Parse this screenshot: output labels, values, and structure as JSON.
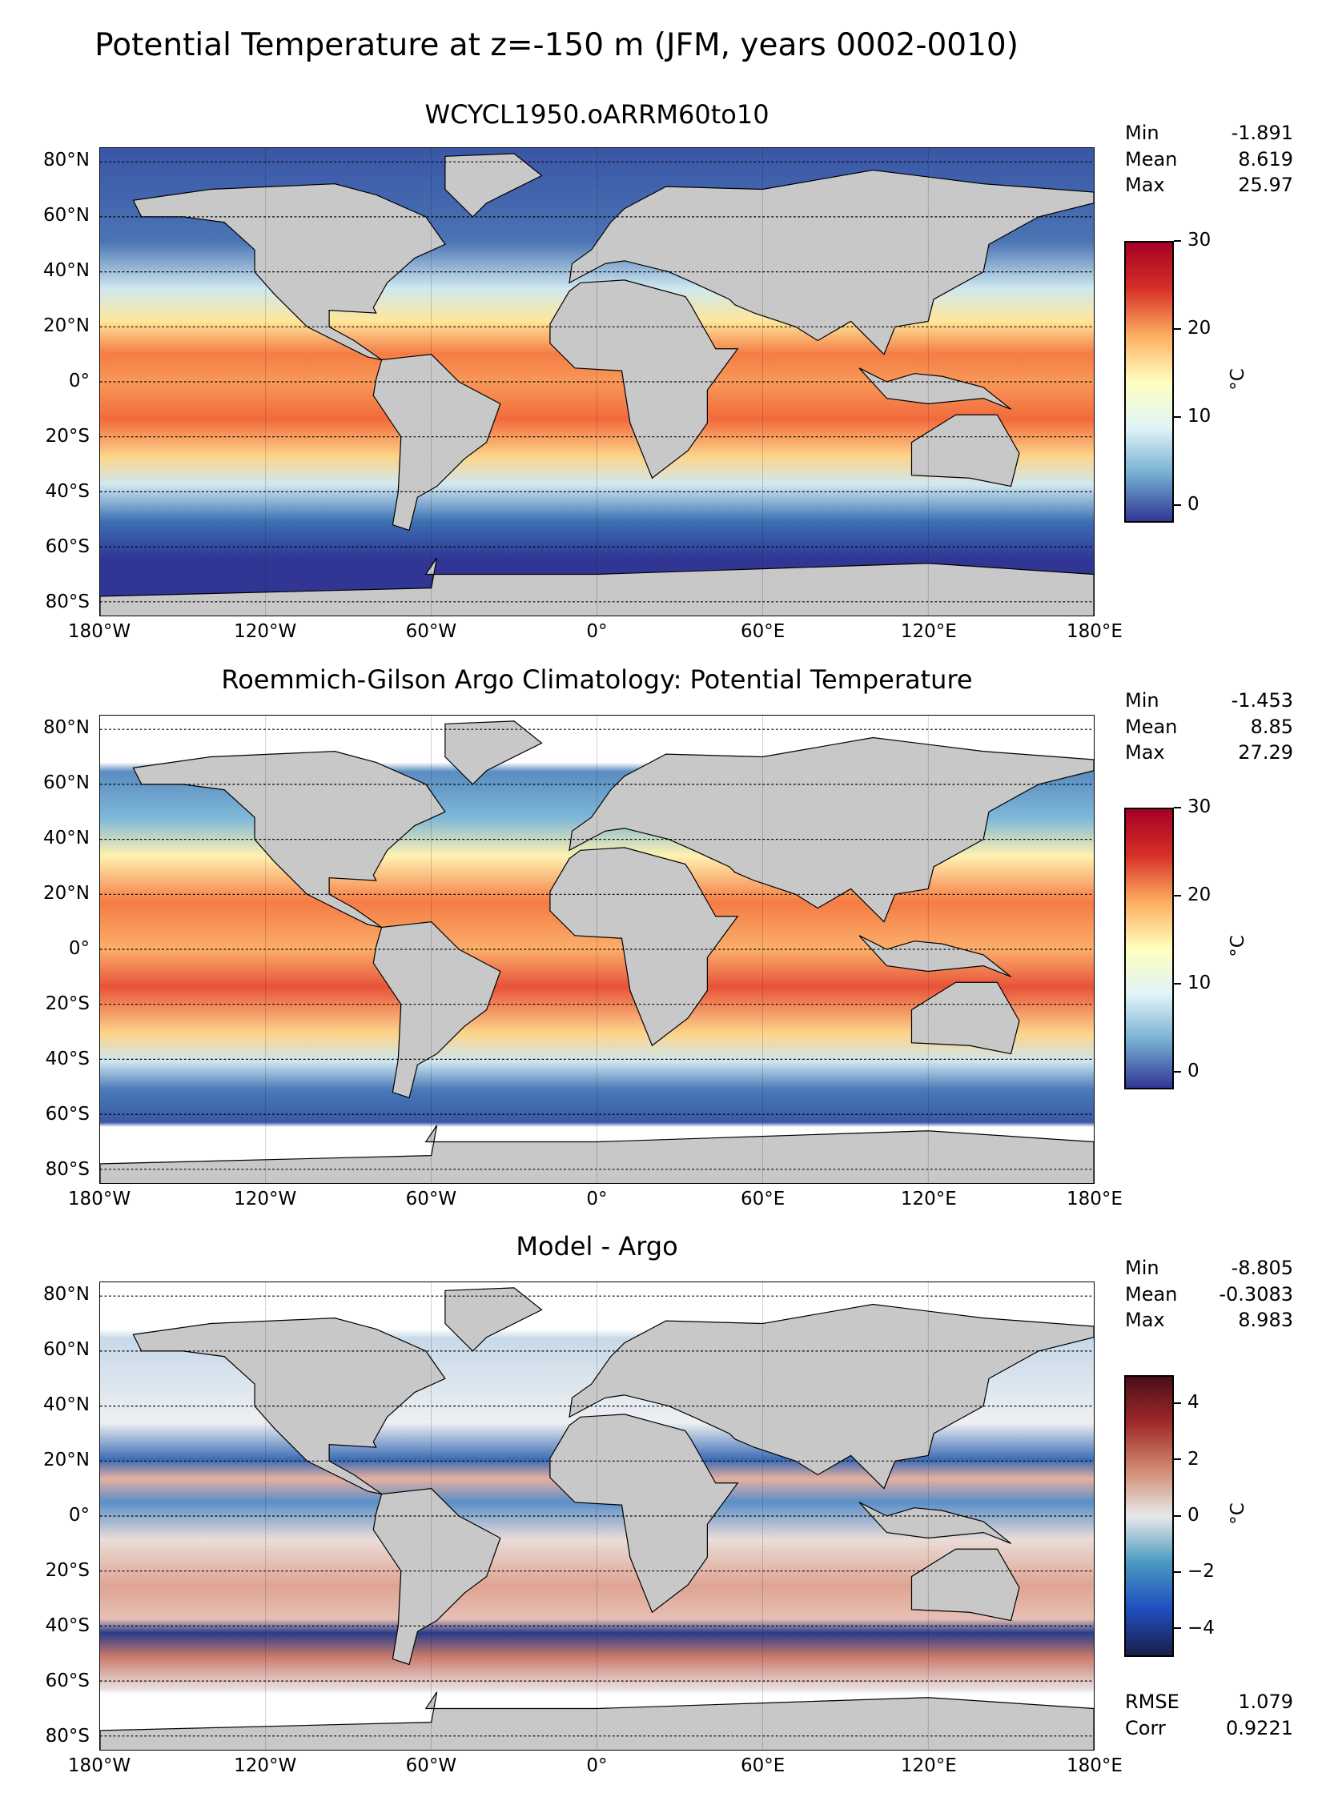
{
  "title": "Potential Temperature at z=-150 m (JFM, years 0002-0010)",
  "chart_data": [
    {
      "type": "heatmap",
      "title": "WCYCL1950.oARRM60to10",
      "stats": [
        {
          "label": "Min",
          "value": "-1.891"
        },
        {
          "label": "Mean",
          "value": "8.619"
        },
        {
          "label": "Max",
          "value": "25.97"
        }
      ],
      "colorbar": {
        "ticks": [
          "30",
          "20",
          "10",
          "0"
        ],
        "unit": "°C",
        "range": [
          -2,
          30
        ],
        "colors": [
          "#313695",
          "#74add1",
          "#e0f3f8",
          "#ffffbf",
          "#fdae61",
          "#d73027",
          "#a50026"
        ]
      },
      "fill": "model"
    },
    {
      "type": "heatmap",
      "title": "Roemmich-Gilson Argo Climatology: Potential Temperature",
      "stats": [
        {
          "label": "Min",
          "value": "-1.453"
        },
        {
          "label": "Mean",
          "value": "8.85"
        },
        {
          "label": "Max",
          "value": "27.29"
        }
      ],
      "colorbar": {
        "ticks": [
          "30",
          "20",
          "10",
          "0"
        ],
        "unit": "°C",
        "range": [
          -2,
          30
        ],
        "colors": [
          "#313695",
          "#74add1",
          "#e0f3f8",
          "#ffffbf",
          "#fdae61",
          "#d73027",
          "#a50026"
        ]
      },
      "fill": "obs"
    },
    {
      "type": "heatmap",
      "title": "Model - Argo",
      "stats": [
        {
          "label": "Min",
          "value": "-8.805"
        },
        {
          "label": "Mean",
          "value": "-0.3083"
        },
        {
          "label": "Max",
          "value": "8.983"
        }
      ],
      "extra_stats": [
        {
          "label": "RMSE",
          "value": "1.079"
        },
        {
          "label": "Corr",
          "value": "0.9221"
        }
      ],
      "colorbar": {
        "ticks": [
          "4",
          "2",
          "0",
          "−2",
          "−4"
        ],
        "unit": "°C",
        "range": [
          -5,
          5
        ],
        "colors": [
          "#1a1f4a",
          "#1f4fbf",
          "#4a9ac0",
          "#e8e8ea",
          "#d08a70",
          "#a02a2a",
          "#4a0e18"
        ]
      },
      "fill": "diff"
    }
  ],
  "axes": {
    "lat_ticks": [
      "80°N",
      "60°N",
      "40°N",
      "20°N",
      "0°",
      "20°S",
      "40°S",
      "60°S",
      "80°S"
    ],
    "lon_ticks": [
      "180°W",
      "120°W",
      "60°W",
      "0°",
      "60°E",
      "120°E",
      "180°E"
    ]
  }
}
